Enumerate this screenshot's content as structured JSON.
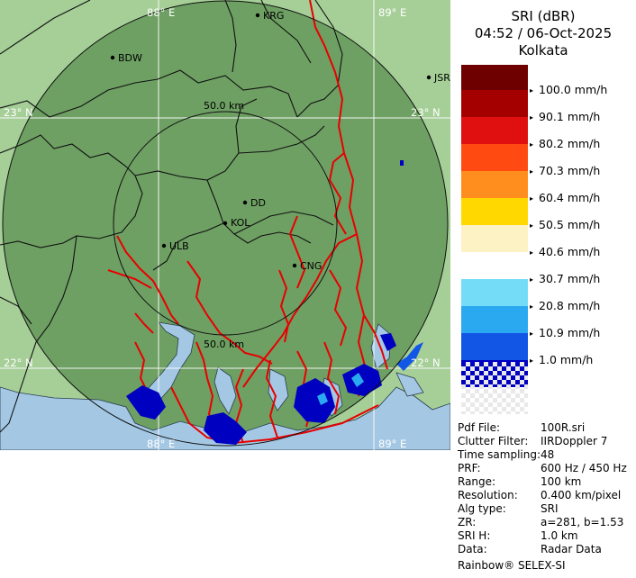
{
  "map": {
    "grid_labels": {
      "lon_top_left": "88° E",
      "lon_top_right": "89° E",
      "lon_bottom_left": "88° E",
      "lon_bottom_right": "89° E",
      "lat_upper_left": "23° N",
      "lat_upper_right": "23° N",
      "lat_lower_left": "22° N",
      "lat_lower_right": "22° N"
    },
    "range_rings": {
      "inner_top": "50.0 km",
      "inner_bottom": "50.0 km"
    },
    "cities": {
      "krg": "KRG",
      "bdw": "BDW",
      "jsr": "JSR",
      "dd": "DD",
      "kol": "KOL",
      "ulb": "ULB",
      "cng": "CNG"
    }
  },
  "panel": {
    "product": "SRI (dBR)",
    "datetime": "04:52 / 06-Oct-2025",
    "site": "Kolkata",
    "legend": [
      {
        "label": "100.0 mm/h",
        "color": "#a40000"
      },
      {
        "label": "90.1 mm/h",
        "color": "#e01010"
      },
      {
        "label": "80.2 mm/h",
        "color": "#ff4a12"
      },
      {
        "label": "70.3 mm/h",
        "color": "#ff8e1e"
      },
      {
        "label": "60.4 mm/h",
        "color": "#ffd800"
      },
      {
        "label": "50.5 mm/h",
        "color": "#fdf2c4"
      },
      {
        "label": "40.6 mm/h",
        "color": "#ffffff"
      },
      {
        "label": "30.7 mm/h",
        "color": "#74dcf7"
      },
      {
        "label": "20.8 mm/h",
        "color": "#2aa9f1"
      },
      {
        "label": "10.9 mm/h",
        "color": "#1256e6"
      },
      {
        "label": "1.0 mm/h",
        "color": "#0000c0"
      }
    ],
    "top_color": "#6e0000",
    "meta": [
      {
        "key": "Pdf File:",
        "value": "100R.sri"
      },
      {
        "key": "Clutter Filter:",
        "value": "IIRDoppler 7"
      },
      {
        "key": "Time sampling:",
        "value": "48"
      },
      {
        "key": "PRF:",
        "value": "600 Hz / 450 Hz"
      },
      {
        "key": "Range:",
        "value": "100 km"
      },
      {
        "key": "Resolution:",
        "value": "0.400 km/pixel"
      },
      {
        "key": "Alg type:",
        "value": "SRI"
      },
      {
        "key": "ZR:",
        "value": "a=281, b=1.53"
      },
      {
        "key": "SRI H:",
        "value": "1.0 km"
      },
      {
        "key": "Data:",
        "value": "Radar Data"
      }
    ],
    "footer": "Rainbow® SELEX-SI"
  }
}
